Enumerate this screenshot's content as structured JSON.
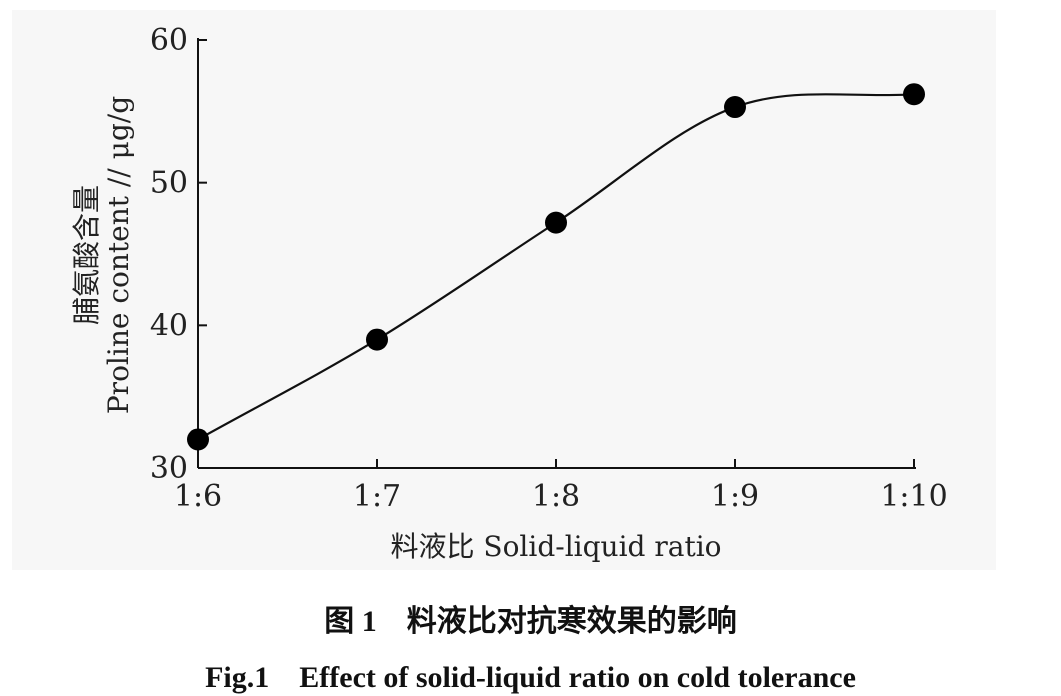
{
  "chart_data": {
    "type": "line",
    "categories": [
      "1:6",
      "1:7",
      "1:8",
      "1:9",
      "1:10"
    ],
    "series": [
      {
        "values": [
          32,
          39,
          47.2,
          55.3,
          56.2
        ]
      }
    ],
    "yticks": [
      "30",
      "40",
      "50",
      "60"
    ],
    "ylim": [
      30,
      60
    ],
    "xlabel": "料液比 Solid-liquid ratio",
    "ylabel_zh": "脯氨酸含量",
    "ylabel_en": "Proline content // μg/g",
    "smooth": true,
    "marker": "filled-circle",
    "grid": false
  },
  "caption": {
    "zh": "图 1　料液比对抗寒效果的影响",
    "en": "Fig.1　Effect of solid-liquid ratio on cold tolerance"
  }
}
